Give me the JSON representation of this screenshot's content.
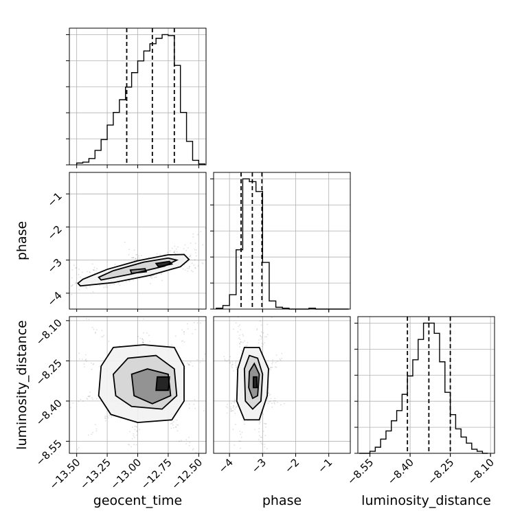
{
  "chart_data": {
    "type": "corner",
    "parameters": [
      "geocent_time",
      "phase",
      "luminosity_distance"
    ],
    "axes": {
      "geocent_time": {
        "label": "geocent_time",
        "range": [
          -13.56,
          -12.44
        ],
        "ticks": [
          -13.5,
          -13.25,
          -13.0,
          -12.75,
          -12.5
        ],
        "tick_labels": [
          "−13.50",
          "−13.25",
          "−13.00",
          "−12.75",
          "−12.50"
        ]
      },
      "phase": {
        "label": "phase",
        "range": [
          -4.48,
          -0.35
        ],
        "ticks": [
          -4,
          -3,
          -2,
          -1
        ],
        "tick_labels": [
          "−4",
          "−3",
          "−2",
          "−1"
        ]
      },
      "luminosity_distance": {
        "label": "luminosity_distance",
        "range": [
          -8.595,
          -8.085
        ],
        "ticks": [
          -8.55,
          -8.4,
          -8.25,
          -8.1
        ],
        "tick_labels": [
          "−8.55",
          "−8.40",
          "−8.25",
          "−8.10"
        ]
      }
    },
    "histograms": {
      "geocent_time": {
        "bin_edges": [
          -13.5,
          -13.45,
          -13.4,
          -13.35,
          -13.3,
          -13.25,
          -13.2,
          -13.15,
          -13.1,
          -13.05,
          -13.0,
          -12.95,
          -12.9,
          -12.85,
          -12.8,
          -12.75,
          -12.7,
          -12.65,
          -12.6,
          -12.55,
          -12.5,
          -12.45
        ],
        "counts": [
          2,
          3,
          7,
          16,
          28,
          44,
          58,
          72,
          86,
          102,
          115,
          126,
          134,
          140,
          144,
          143,
          110,
          58,
          26,
          5,
          1
        ],
        "quantiles": [
          -13.09,
          -12.88,
          -12.7
        ]
      },
      "phase": {
        "bin_edges": [
          -4.4,
          -4.2,
          -4.0,
          -3.8,
          -3.6,
          -3.4,
          -3.2,
          -3.0,
          -2.8,
          -2.6,
          -2.4,
          -2.2,
          -2.0,
          -1.8,
          -1.6,
          -1.4,
          -1.2,
          -1.0,
          -0.8,
          -0.6,
          -0.4
        ],
        "counts": [
          1,
          4,
          16,
          66,
          145,
          142,
          131,
          52,
          9,
          2,
          1,
          0,
          0,
          0,
          1,
          0,
          0,
          0,
          0,
          0
        ],
        "quantiles": [
          -3.65,
          -3.31,
          -3.02
        ]
      },
      "luminosity_distance": {
        "bin_edges": [
          -8.59,
          -8.57,
          -8.55,
          -8.53,
          -8.51,
          -8.49,
          -8.47,
          -8.45,
          -8.43,
          -8.41,
          -8.39,
          -8.37,
          -8.35,
          -8.33,
          -8.31,
          -8.29,
          -8.27,
          -8.25,
          -8.23,
          -8.21,
          -8.19,
          -8.17,
          -8.15,
          -8.13,
          -8.11
        ],
        "counts": [
          0,
          0,
          1,
          3,
          7,
          11,
          16,
          21,
          29,
          38,
          46,
          56,
          64,
          64,
          59,
          45,
          30,
          19,
          12,
          8,
          5,
          2,
          1,
          0
        ],
        "quantiles": [
          -8.41,
          -8.33,
          -8.25
        ]
      }
    },
    "joint": [
      {
        "x": "geocent_time",
        "y": "phase",
        "center": [
          -12.95,
          -3.32
        ],
        "contours": [
          [
            [
              -13.47,
              -3.78
            ],
            [
              -13.2,
              -3.68
            ],
            [
              -12.9,
              -3.46
            ],
            [
              -12.65,
              -3.2
            ],
            [
              -12.58,
              -2.98
            ],
            [
              -12.62,
              -2.83
            ],
            [
              -12.75,
              -2.84
            ],
            [
              -13.0,
              -3.02
            ],
            [
              -13.25,
              -3.28
            ],
            [
              -13.45,
              -3.58
            ],
            [
              -13.49,
              -3.7
            ]
          ],
          [
            [
              -13.3,
              -3.6
            ],
            [
              -13.05,
              -3.42
            ],
            [
              -12.78,
              -3.18
            ],
            [
              -12.68,
              -3.0
            ],
            [
              -12.75,
              -2.94
            ],
            [
              -12.95,
              -3.06
            ],
            [
              -13.2,
              -3.32
            ],
            [
              -13.32,
              -3.52
            ]
          ],
          [
            [
              -13.05,
              -3.4
            ],
            [
              -12.93,
              -3.35
            ],
            [
              -12.94,
              -3.26
            ],
            [
              -13.06,
              -3.3
            ]
          ],
          [
            [
              -12.83,
              -3.2
            ],
            [
              -12.72,
              -3.12
            ],
            [
              -12.74,
              -3.04
            ],
            [
              -12.85,
              -3.1
            ]
          ]
        ]
      },
      {
        "x": "geocent_time",
        "y": "luminosity_distance",
        "center": [
          -12.93,
          -8.33
        ],
        "contours": [
          [
            [
              -13.3,
              -8.27
            ],
            [
              -13.2,
              -8.2
            ],
            [
              -12.95,
              -8.19
            ],
            [
              -12.7,
              -8.2
            ],
            [
              -12.62,
              -8.27
            ],
            [
              -12.62,
              -8.4
            ],
            [
              -12.72,
              -8.47
            ],
            [
              -13.0,
              -8.48
            ],
            [
              -13.22,
              -8.45
            ],
            [
              -13.32,
              -8.38
            ]
          ],
          [
            [
              -13.2,
              -8.3
            ],
            [
              -13.08,
              -8.24
            ],
            [
              -12.85,
              -8.23
            ],
            [
              -12.7,
              -8.28
            ],
            [
              -12.68,
              -8.38
            ],
            [
              -12.8,
              -8.43
            ],
            [
              -13.05,
              -8.42
            ],
            [
              -13.18,
              -8.38
            ]
          ],
          [
            [
              -13.05,
              -8.3
            ],
            [
              -12.92,
              -8.28
            ],
            [
              -12.75,
              -8.3
            ],
            [
              -12.73,
              -8.38
            ],
            [
              -12.88,
              -8.41
            ],
            [
              -13.03,
              -8.38
            ]
          ],
          [
            [
              -12.84,
              -8.31
            ],
            [
              -12.74,
              -8.31
            ],
            [
              -12.75,
              -8.36
            ],
            [
              -12.85,
              -8.36
            ]
          ]
        ]
      },
      {
        "x": "phase",
        "y": "luminosity_distance",
        "center": [
          -3.33,
          -8.33
        ],
        "contours": [
          [
            [
              -3.75,
              -8.28
            ],
            [
              -3.55,
              -8.2
            ],
            [
              -3.1,
              -8.2
            ],
            [
              -2.82,
              -8.28
            ],
            [
              -2.86,
              -8.38
            ],
            [
              -3.1,
              -8.47
            ],
            [
              -3.55,
              -8.47
            ],
            [
              -3.78,
              -8.4
            ]
          ],
          [
            [
              -3.55,
              -8.28
            ],
            [
              -3.4,
              -8.23
            ],
            [
              -3.15,
              -8.24
            ],
            [
              -3.0,
              -8.3
            ],
            [
              -3.05,
              -8.4
            ],
            [
              -3.3,
              -8.43
            ],
            [
              -3.52,
              -8.4
            ]
          ],
          [
            [
              -3.4,
              -8.29
            ],
            [
              -3.25,
              -8.26
            ],
            [
              -3.1,
              -8.3
            ],
            [
              -3.15,
              -8.38
            ],
            [
              -3.3,
              -8.39
            ],
            [
              -3.42,
              -8.35
            ]
          ],
          [
            [
              -3.28,
              -8.31
            ],
            [
              -3.17,
              -8.31
            ],
            [
              -3.17,
              -8.35
            ],
            [
              -3.28,
              -8.35
            ]
          ]
        ]
      }
    ]
  }
}
